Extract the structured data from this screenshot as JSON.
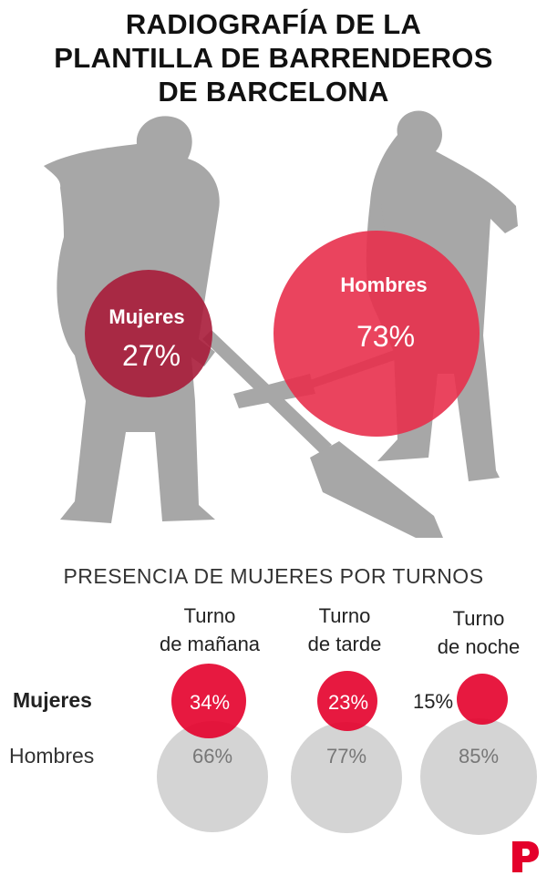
{
  "title": {
    "line1": "RADIOGRAFÍA DE LA",
    "line2": "PLANTILLA DE BARRENDEROS",
    "line3": "DE BARCELONA"
  },
  "colors": {
    "women_dark": "#a81c3a",
    "men_red": "#e8304d",
    "shift_red": "#e4002b",
    "shift_gray": "#d4d4d4",
    "silhouette": "#a7a7a7"
  },
  "chart_data": [
    {
      "type": "bubble",
      "categories": [
        "Mujeres",
        "Hombres"
      ],
      "values": [
        27,
        73
      ],
      "value_labels": [
        "27%",
        "73%"
      ]
    },
    {
      "type": "bubble",
      "title": "PRESENCIA DE MUJERES POR TURNOS",
      "categories": [
        {
          "line1": "Turno",
          "line2": "de mañana"
        },
        {
          "line1": "Turno",
          "line2": "de tarde"
        },
        {
          "line1": "Turno",
          "line2": "de noche"
        }
      ],
      "series": [
        {
          "name": "Mujeres",
          "values": [
            34,
            23,
            15
          ],
          "labels": [
            "34%",
            "23%",
            "15%"
          ]
        },
        {
          "name": "Hombres",
          "values": [
            66,
            77,
            85
          ],
          "labels": [
            "66%",
            "77%",
            "85%"
          ]
        }
      ]
    }
  ],
  "icons": {
    "sweepers": "sweeper-silhouettes-icon",
    "logo": "publisher-logo-icon"
  }
}
